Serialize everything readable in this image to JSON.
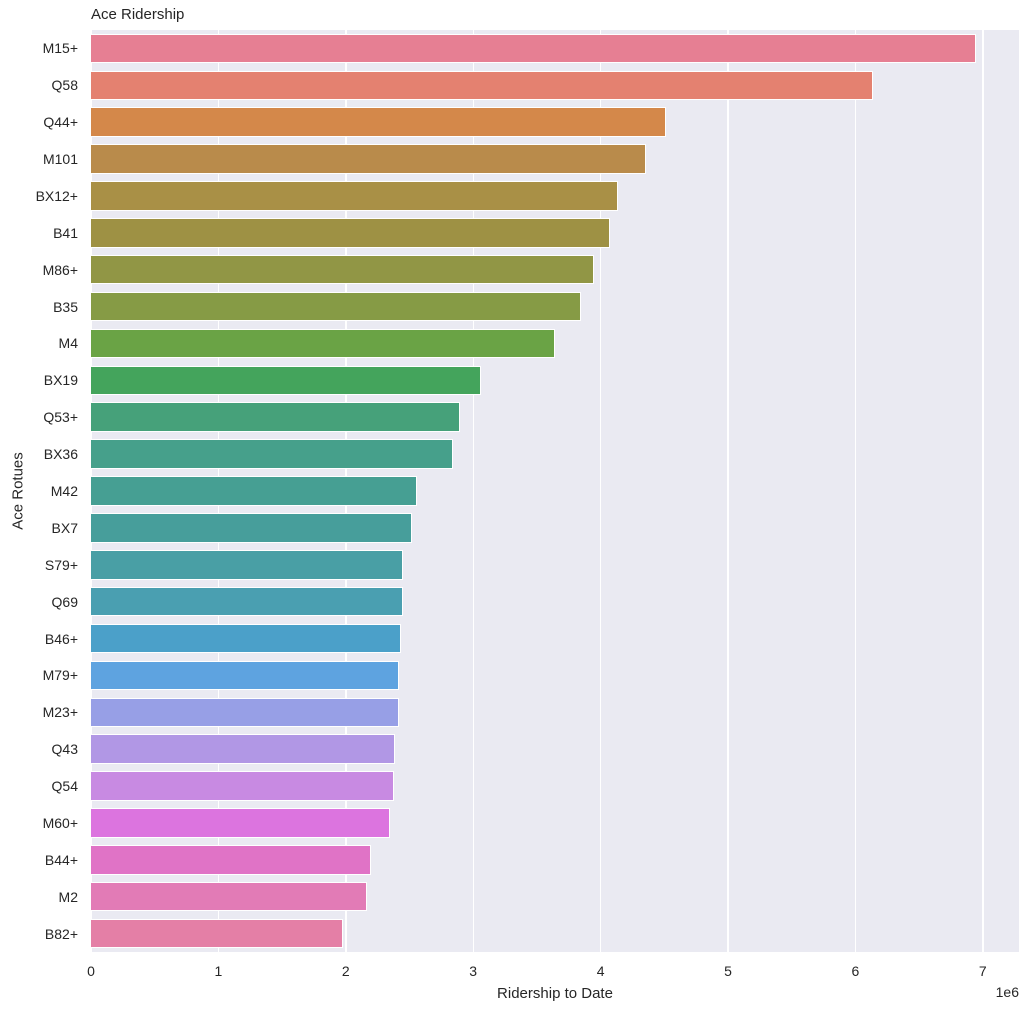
{
  "chart_data": {
    "type": "bar",
    "orientation": "horizontal",
    "title": "Ace Ridership",
    "xlabel": "Ridership to Date",
    "ylabel": "Ace Rotues",
    "x_offset_label": "1e6",
    "xlim": [
      0,
      7.284
    ],
    "xticks": [
      0,
      1,
      2,
      3,
      4,
      5,
      6,
      7
    ],
    "grid": true,
    "legend": null,
    "categories": [
      "M15+",
      "Q58",
      "Q44+",
      "M101",
      "BX12+",
      "B41",
      "M86+",
      "B35",
      "M4",
      "BX19",
      "Q53+",
      "BX36",
      "M42",
      "BX7",
      "S79+",
      "Q69",
      "B46+",
      "M79+",
      "M23+",
      "Q43",
      "Q54",
      "M60+",
      "B44+",
      "M2",
      "B82+"
    ],
    "values": [
      6950000,
      6140000,
      4510000,
      4360000,
      4140000,
      4070000,
      3950000,
      3850000,
      3640000,
      3060000,
      2900000,
      2840000,
      2560000,
      2520000,
      2450000,
      2450000,
      2430000,
      2420000,
      2420000,
      2390000,
      2380000,
      2350000,
      2200000,
      2170000,
      1980000
    ],
    "colors": [
      "#e67f93",
      "#e48170",
      "#d4884a",
      "#b98b4b",
      "#a99046",
      "#9e9144",
      "#919645",
      "#869b45",
      "#6aa345",
      "#44a45c",
      "#46a17a",
      "#46a08b",
      "#469f93",
      "#479e9b",
      "#499fa5",
      "#4a9fb1",
      "#4ba0c9",
      "#5ea3e0",
      "#979fe6",
      "#b197e5",
      "#c88ae2",
      "#dc74df",
      "#e073c6",
      "#e27bb6",
      "#e47fa6"
    ]
  }
}
